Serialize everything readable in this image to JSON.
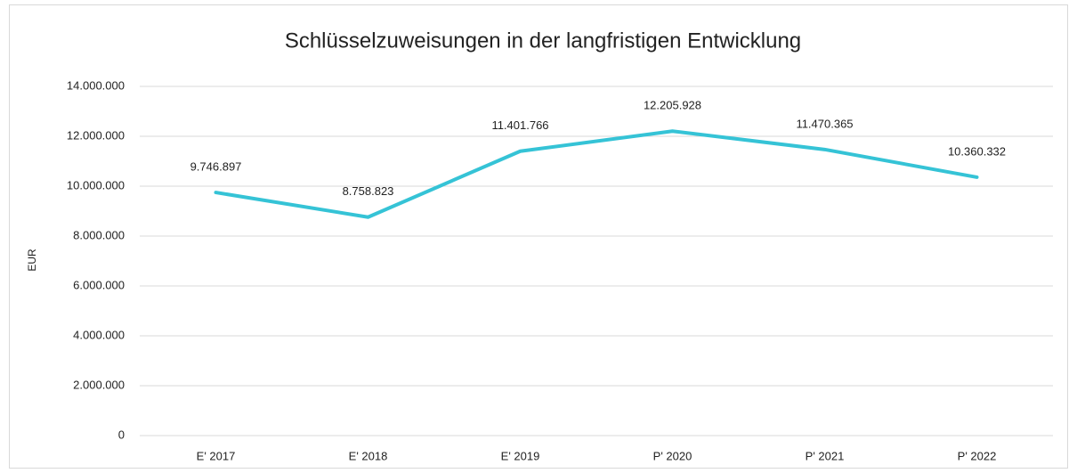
{
  "chart_data": {
    "type": "line",
    "title": "Schlüsselzuweisungen in der langfristigen Entwicklung",
    "y_label": "EUR",
    "categories": [
      "E' 2017",
      "E' 2018",
      "E' 2019",
      "P' 2020",
      "P' 2021",
      "P' 2022"
    ],
    "series": [
      {
        "name": "Schlüsselzuweisungen",
        "color": "#35c3d6",
        "values": [
          9746897,
          8758823,
          11401766,
          12205928,
          11470365,
          10360332
        ],
        "value_labels": [
          "9.746.897",
          "8.758.823",
          "11.401.766",
          "12.205.928",
          "11.470.365",
          "10.360.332"
        ]
      }
    ],
    "ylim": [
      0,
      14000000
    ],
    "yticks": [
      0,
      {
        "value": 2000000,
        "label": "2.000.000"
      },
      {
        "value": 4000000,
        "label": "4.000.000"
      },
      {
        "value": 6000000,
        "label": "6.000.000"
      },
      {
        "value": 8000000,
        "label": "8.000.000"
      },
      {
        "value": 10000000,
        "label": "10.000.000"
      },
      {
        "value": 12000000,
        "label": "12.000.000"
      },
      {
        "value": 14000000,
        "label": "14.000.000"
      }
    ],
    "grid": true
  }
}
